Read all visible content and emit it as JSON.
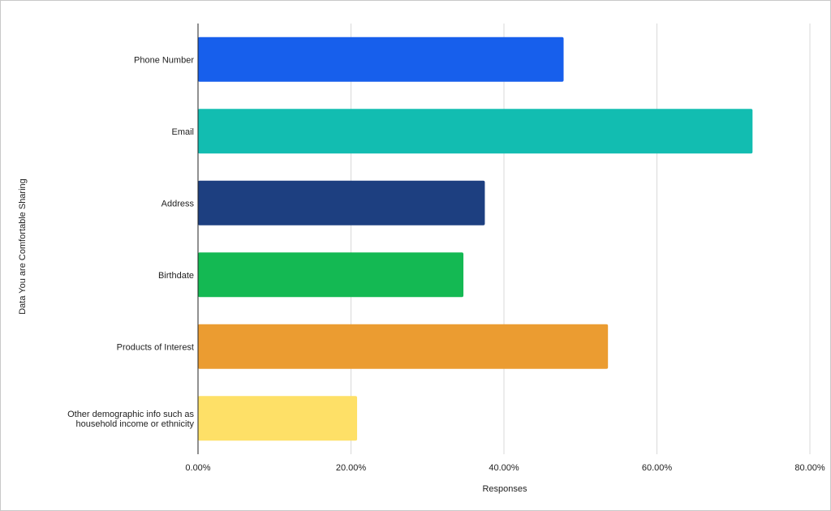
{
  "chart_data": {
    "type": "bar",
    "orientation": "horizontal",
    "categories": [
      "Phone Number",
      "Email",
      "Address",
      "Birthdate",
      "Products of Interest",
      "Other demographic info such as household income or ethnicity"
    ],
    "category_lines": [
      [
        "Phone Number"
      ],
      [
        "Email"
      ],
      [
        "Address"
      ],
      [
        "Birthdate"
      ],
      [
        "Products of Interest"
      ],
      [
        "Other demographic info such as",
        "household income or ethnicity"
      ]
    ],
    "values": [
      47.8,
      72.5,
      37.5,
      34.7,
      53.6,
      20.8
    ],
    "colors": [
      "#175fec",
      "#12bdb1",
      "#1d3f80",
      "#14b953",
      "#eb9c31",
      "#fee067"
    ],
    "xlim": [
      0,
      80
    ],
    "xticks": [
      0,
      20,
      40,
      60,
      80
    ],
    "xtick_labels": [
      "0.00%",
      "20.00%",
      "40.00%",
      "60.00%",
      "80.00%"
    ],
    "xlabel": "Responses",
    "ylabel": "Data You are Comfortable Sharing",
    "grid": "vertical",
    "legend": "none"
  }
}
